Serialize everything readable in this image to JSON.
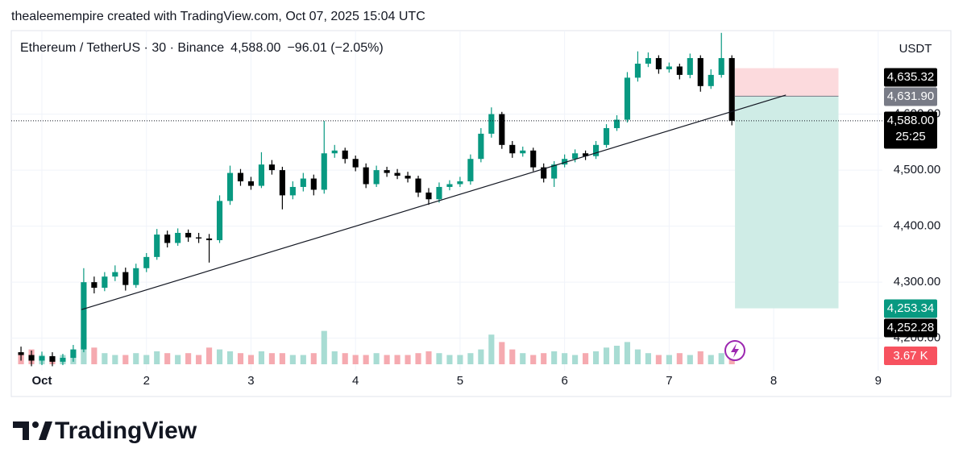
{
  "header": "thealeemempire created with TradingView.com, Oct 07, 2025 15:04 UTC",
  "brand": "TradingView",
  "chart_data": {
    "type": "candlestick",
    "title": "Ethereum / TetherUS · 30 · Binance",
    "last_price_label": "4,588.00",
    "change_label": "−96.01 (−2.05%)",
    "axis_unit": "USDT",
    "up_color": "#089981",
    "down_color": "#000000",
    "x": [
      0.8,
      0.9,
      1.0,
      1.1,
      1.2,
      1.3,
      1.4,
      1.5,
      1.6,
      1.7,
      1.8,
      1.9,
      2.0,
      2.1,
      2.2,
      2.3,
      2.4,
      2.5,
      2.6,
      2.7,
      2.8,
      2.9,
      3.0,
      3.1,
      3.2,
      3.3,
      3.4,
      3.5,
      3.6,
      3.7,
      3.8,
      3.9,
      4.0,
      4.1,
      4.2,
      4.3,
      4.4,
      4.5,
      4.6,
      4.7,
      4.8,
      4.9,
      5.0,
      5.1,
      5.2,
      5.3,
      5.4,
      5.5,
      5.6,
      5.7,
      5.8,
      5.9,
      6.0,
      6.1,
      6.2,
      6.3,
      6.4,
      6.5,
      6.6,
      6.7,
      6.8,
      6.9,
      7.0,
      7.1,
      7.2,
      7.3,
      7.4,
      7.5,
      7.6
    ],
    "open": [
      4175,
      4170,
      4160,
      4168,
      4158,
      4165,
      4180,
      4300,
      4290,
      4310,
      4318,
      4295,
      4325,
      4345,
      4385,
      4370,
      4388,
      4380,
      4378,
      4375,
      4445,
      4495,
      4480,
      4472,
      4510,
      4500,
      4455,
      4470,
      4485,
      4465,
      4530,
      4535,
      4520,
      4505,
      4475,
      4500,
      4495,
      4490,
      4485,
      4460,
      4448,
      4470,
      4475,
      4480,
      4520,
      4565,
      4600,
      4545,
      4530,
      4535,
      4505,
      4485,
      4510,
      4520,
      4530,
      4525,
      4545,
      4575,
      4590,
      4665,
      4690,
      4700,
      4680,
      4685,
      4670,
      4700,
      4650,
      4670,
      4700
    ],
    "high": [
      4185,
      4178,
      4176,
      4175,
      4172,
      4188,
      4325,
      4310,
      4318,
      4330,
      4326,
      4333,
      4352,
      4395,
      4392,
      4396,
      4394,
      4388,
      4386,
      4455,
      4508,
      4502,
      4488,
      4532,
      4518,
      4506,
      4480,
      4495,
      4492,
      4588,
      4545,
      4540,
      4526,
      4512,
      4508,
      4506,
      4502,
      4497,
      4490,
      4468,
      4478,
      4482,
      4488,
      4528,
      4575,
      4612,
      4604,
      4552,
      4542,
      4540,
      4512,
      4516,
      4528,
      4537,
      4535,
      4552,
      4582,
      4598,
      4675,
      4712,
      4710,
      4705,
      4692,
      4690,
      4708,
      4705,
      4680,
      4745,
      4705
    ],
    "low": [
      4160,
      4150,
      4152,
      4150,
      4152,
      4158,
      4175,
      4280,
      4284,
      4302,
      4285,
      4290,
      4318,
      4340,
      4362,
      4365,
      4372,
      4370,
      4335,
      4370,
      4438,
      4472,
      4465,
      4468,
      4492,
      4430,
      4448,
      4462,
      4455,
      4458,
      4522,
      4512,
      4498,
      4468,
      4470,
      4488,
      4484,
      4478,
      4452,
      4438,
      4442,
      4464,
      4470,
      4474,
      4514,
      4558,
      4538,
      4522,
      4524,
      4498,
      4478,
      4470,
      4505,
      4514,
      4518,
      4520,
      4540,
      4570,
      4585,
      4658,
      4684,
      4672,
      4674,
      4662,
      4664,
      4640,
      4645,
      4665,
      4580
    ],
    "close": [
      4170,
      4160,
      4168,
      4158,
      4165,
      4180,
      4300,
      4290,
      4310,
      4318,
      4295,
      4325,
      4345,
      4385,
      4370,
      4388,
      4380,
      4378,
      4375,
      4445,
      4495,
      4480,
      4472,
      4510,
      4500,
      4455,
      4470,
      4485,
      4465,
      4530,
      4535,
      4520,
      4505,
      4475,
      4500,
      4495,
      4490,
      4485,
      4460,
      4448,
      4470,
      4475,
      4480,
      4520,
      4565,
      4600,
      4545,
      4530,
      4535,
      4505,
      4485,
      4510,
      4520,
      4530,
      4525,
      4545,
      4575,
      4590,
      4665,
      4690,
      4700,
      4680,
      4685,
      4670,
      4700,
      4650,
      4670,
      4700,
      4588
    ],
    "xlim": [
      0.707,
      9.04
    ],
    "xticks": [
      {
        "value": 1,
        "label": "Oct"
      },
      2,
      3,
      4,
      5,
      6,
      7,
      8,
      9
    ],
    "ylim": [
      4142,
      4749
    ],
    "yticks": [
      {
        "value": 4200,
        "label": "4,200.00"
      },
      {
        "value": 4300,
        "label": "4,300.00"
      },
      {
        "value": 4400,
        "label": "4,400.00"
      },
      {
        "value": 4500,
        "label": "4,500.00"
      },
      {
        "value": 4600,
        "label": "4,600.00"
      }
    ],
    "grid": true,
    "volume": {
      "values": [
        6,
        8,
        5,
        4,
        5,
        7,
        14,
        9,
        6,
        5,
        5,
        6,
        5,
        7,
        6,
        5,
        6,
        5,
        9,
        8,
        7,
        6,
        5,
        7,
        6,
        6,
        5,
        5,
        6,
        18,
        7,
        6,
        5,
        5,
        6,
        5,
        5,
        5,
        6,
        7,
        6,
        5,
        5,
        6,
        8,
        16,
        12,
        8,
        6,
        5,
        6,
        7,
        6,
        5,
        6,
        7,
        9,
        10,
        12,
        8,
        6,
        5,
        5,
        6,
        5,
        7,
        5,
        6,
        3.67
      ],
      "ylim": [
        0,
        40
      ],
      "up_color": "#a8dcd3",
      "down_color": "#f5aab0"
    },
    "volume_tag": {
      "value": 3.67,
      "label": "3.67 K",
      "color": "#f7525f"
    },
    "trend_line": {
      "x": [
        1.378,
        8.117
      ],
      "y": [
        4251,
        4634
      ],
      "color": "#131722"
    },
    "position": {
      "x": [
        7.63,
        8.62
      ],
      "entry": 4631.9,
      "stop": 4682,
      "target": 4253.34,
      "stop_color": "#fcdadd",
      "target_color": "#cfece6"
    },
    "price_tags": [
      {
        "value": 4635.32,
        "label": "4,635.32",
        "color": "#000000"
      },
      {
        "value": 4631.9,
        "label": "4,631.90",
        "color": "#787b86"
      },
      {
        "value": 4588,
        "label": "4,588.00",
        "color": "#000000"
      },
      {
        "value": 4253.34,
        "label": "4,253.34",
        "color": "#089981"
      },
      {
        "value": 4252.28,
        "label": "4,252.28",
        "color": "#000000"
      }
    ],
    "current_tag": 2,
    "countdown": "25:25"
  }
}
